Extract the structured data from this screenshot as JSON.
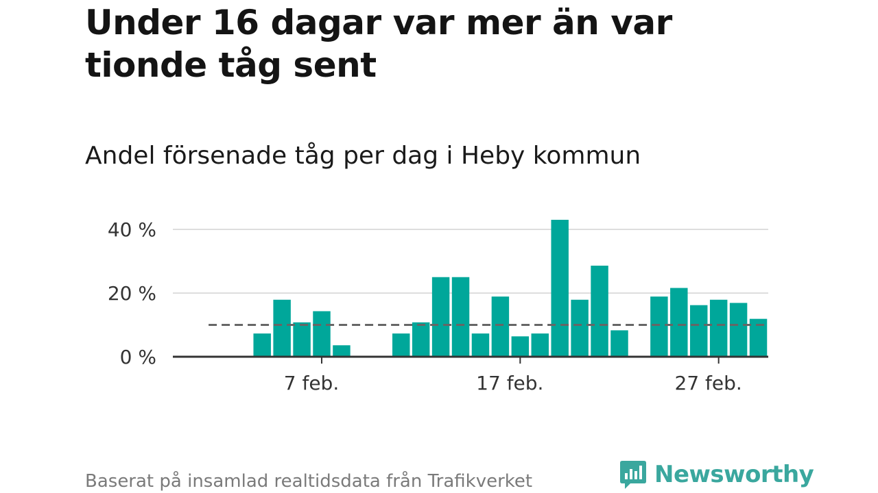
{
  "header": {
    "title": "Under 16 dagar var mer än var tionde tåg sent",
    "subtitle": "Andel försenade tåg per dag i Heby kommun"
  },
  "footer": {
    "source": "Baserat på insamlad realtidsdata från Trafikverket",
    "brand": "Newsworthy",
    "brand_color": "#3aa79e"
  },
  "chart_data": {
    "type": "bar",
    "title": "Andel försenade tåg per dag i Heby kommun",
    "xlabel": "",
    "ylabel": "",
    "x_axis_type": "date",
    "x_ticks": [
      {
        "day": 7,
        "label": "7 feb."
      },
      {
        "day": 17,
        "label": "17 feb."
      },
      {
        "day": 27,
        "label": "27 feb."
      }
    ],
    "y_ticks": [
      {
        "value": 0,
        "label": "0 %"
      },
      {
        "value": 20,
        "label": "20 %"
      },
      {
        "value": 40,
        "label": "40 %"
      }
    ],
    "ylim": [
      0,
      43
    ],
    "xlim_days": [
      -0.5,
      29.5
    ],
    "grid": true,
    "bar_color": "#00a79a",
    "reference_line": {
      "value": 10,
      "style": "dashed",
      "color": "#666666"
    },
    "unit": "%",
    "series": [
      {
        "days": [
          4,
          5,
          6,
          7,
          8,
          11,
          12,
          13,
          14,
          15,
          16,
          17,
          18,
          19,
          20,
          21,
          22,
          24,
          25,
          26,
          27,
          28,
          29
        ],
        "values": [
          7.3,
          17.9,
          10.8,
          14.3,
          3.6,
          7.3,
          10.8,
          25.0,
          25.0,
          7.3,
          18.9,
          6.4,
          7.3,
          43.0,
          17.9,
          28.6,
          8.3,
          18.9,
          21.6,
          16.2,
          17.9,
          16.9,
          11.9
        ]
      }
    ]
  }
}
